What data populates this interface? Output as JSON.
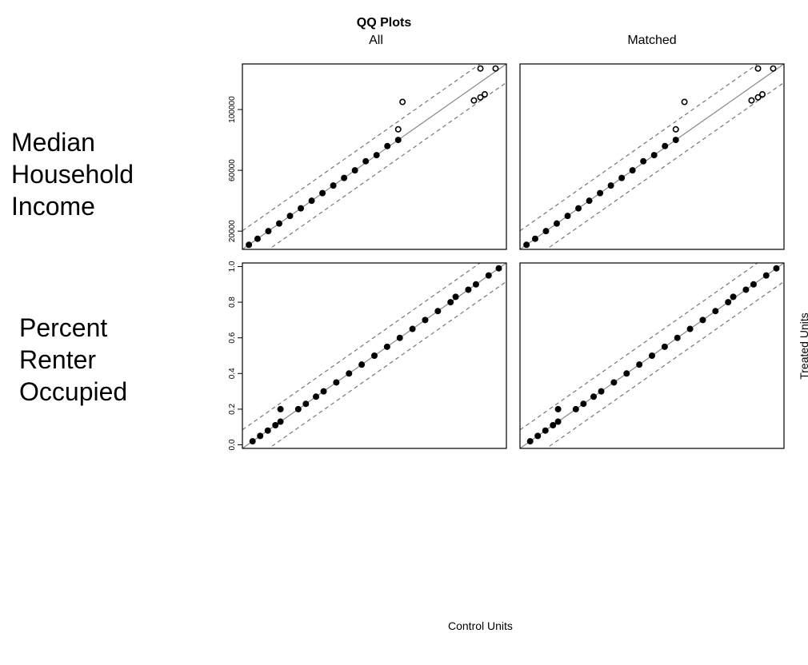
{
  "chart_data": {
    "type": "scatter",
    "title": "QQ Plots",
    "xlabel": "Control Units",
    "ylabel": "Treated Units",
    "columns": [
      "All",
      "Matched"
    ],
    "rows": [
      "Median Household Income",
      "Percent Renter Occupied"
    ],
    "row_label_lines": [
      [
        "Median",
        "Household",
        "Income"
      ],
      [
        "Percent",
        "Renter",
        "Occupied"
      ]
    ],
    "panels": [
      {
        "row": 0,
        "column": "All",
        "xlim": [
          8000,
          130000
        ],
        "ylim": [
          8000,
          130000
        ],
        "yticks": [
          20000,
          60000,
          100000
        ],
        "reference_line": "y = x",
        "band": "dashed",
        "grid": false,
        "points": [
          [
            11000,
            11000
          ],
          [
            15000,
            15000
          ],
          [
            20000,
            20000
          ],
          [
            25000,
            25000
          ],
          [
            30000,
            30000
          ],
          [
            35000,
            35000
          ],
          [
            40000,
            40000
          ],
          [
            45000,
            45000
          ],
          [
            50000,
            50000
          ],
          [
            55000,
            55000
          ],
          [
            60000,
            60000
          ],
          [
            65000,
            66000
          ],
          [
            70000,
            70000
          ],
          [
            75000,
            76000
          ],
          [
            80000,
            80000
          ],
          [
            80000,
            87000
          ],
          [
            82000,
            105000
          ],
          [
            115000,
            106000
          ],
          [
            118000,
            108000
          ],
          [
            120000,
            110000
          ],
          [
            118000,
            127000
          ],
          [
            125000,
            127000
          ]
        ]
      },
      {
        "row": 0,
        "column": "Matched",
        "xlim": [
          8000,
          130000
        ],
        "ylim": [
          8000,
          130000
        ],
        "yticks": [
          20000,
          60000,
          100000
        ],
        "reference_line": "y = x",
        "band": "dashed",
        "grid": false,
        "points": [
          [
            11000,
            11000
          ],
          [
            15000,
            15000
          ],
          [
            20000,
            20000
          ],
          [
            25000,
            25000
          ],
          [
            30000,
            30000
          ],
          [
            35000,
            35000
          ],
          [
            40000,
            40000
          ],
          [
            45000,
            45000
          ],
          [
            50000,
            50000
          ],
          [
            55000,
            55000
          ],
          [
            60000,
            60000
          ],
          [
            65000,
            66000
          ],
          [
            70000,
            70000
          ],
          [
            75000,
            76000
          ],
          [
            80000,
            80000
          ],
          [
            80000,
            87000
          ],
          [
            84000,
            105000
          ],
          [
            115000,
            106000
          ],
          [
            118000,
            108000
          ],
          [
            120000,
            110000
          ],
          [
            118000,
            127000
          ],
          [
            125000,
            127000
          ]
        ]
      },
      {
        "row": 1,
        "column": "All",
        "xlim": [
          -0.02,
          1.02
        ],
        "ylim": [
          -0.02,
          1.02
        ],
        "yticks": [
          0.0,
          0.2,
          0.4,
          0.6,
          0.8,
          1.0
        ],
        "reference_line": "y = x",
        "band": "dashed",
        "grid": false,
        "points": [
          [
            0.02,
            0.02
          ],
          [
            0.05,
            0.05
          ],
          [
            0.08,
            0.08
          ],
          [
            0.11,
            0.11
          ],
          [
            0.13,
            0.13
          ],
          [
            0.13,
            0.2
          ],
          [
            0.2,
            0.2
          ],
          [
            0.23,
            0.23
          ],
          [
            0.27,
            0.27
          ],
          [
            0.3,
            0.3
          ],
          [
            0.35,
            0.35
          ],
          [
            0.4,
            0.4
          ],
          [
            0.45,
            0.45
          ],
          [
            0.5,
            0.5
          ],
          [
            0.55,
            0.55
          ],
          [
            0.6,
            0.6
          ],
          [
            0.65,
            0.65
          ],
          [
            0.7,
            0.7
          ],
          [
            0.75,
            0.75
          ],
          [
            0.8,
            0.8
          ],
          [
            0.82,
            0.83
          ],
          [
            0.87,
            0.87
          ],
          [
            0.9,
            0.9
          ],
          [
            0.95,
            0.95
          ],
          [
            0.99,
            0.99
          ]
        ]
      },
      {
        "row": 1,
        "column": "Matched",
        "xlim": [
          -0.02,
          1.02
        ],
        "ylim": [
          -0.02,
          1.02
        ],
        "yticks": [
          0.0,
          0.2,
          0.4,
          0.6,
          0.8,
          1.0
        ],
        "reference_line": "y = x",
        "band": "dashed",
        "grid": false,
        "points": [
          [
            0.02,
            0.02
          ],
          [
            0.05,
            0.05
          ],
          [
            0.08,
            0.08
          ],
          [
            0.11,
            0.11
          ],
          [
            0.13,
            0.13
          ],
          [
            0.13,
            0.2
          ],
          [
            0.2,
            0.2
          ],
          [
            0.23,
            0.23
          ],
          [
            0.27,
            0.27
          ],
          [
            0.3,
            0.3
          ],
          [
            0.35,
            0.35
          ],
          [
            0.4,
            0.4
          ],
          [
            0.45,
            0.45
          ],
          [
            0.5,
            0.5
          ],
          [
            0.55,
            0.55
          ],
          [
            0.6,
            0.6
          ],
          [
            0.65,
            0.65
          ],
          [
            0.7,
            0.7
          ],
          [
            0.75,
            0.75
          ],
          [
            0.8,
            0.8
          ],
          [
            0.82,
            0.83
          ],
          [
            0.87,
            0.87
          ],
          [
            0.9,
            0.9
          ],
          [
            0.95,
            0.95
          ],
          [
            0.99,
            0.99
          ]
        ]
      }
    ]
  }
}
